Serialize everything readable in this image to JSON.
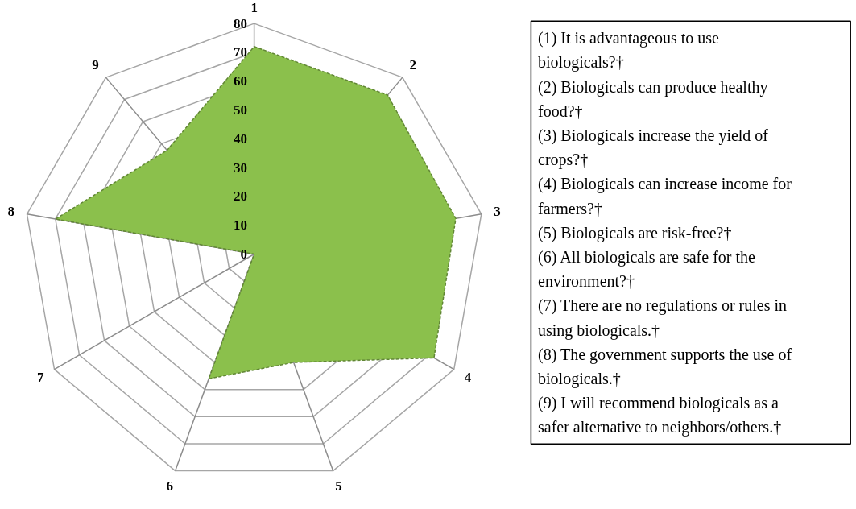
{
  "chart_data": {
    "type": "radar",
    "categories": [
      "1",
      "2",
      "3",
      "4",
      "5",
      "6",
      "7",
      "8",
      "9"
    ],
    "series": [
      {
        "color": "#8bc04c",
        "values": [
          72,
          72,
          71,
          72,
          40,
          46,
          0,
          70,
          47
        ]
      }
    ],
    "ylim": [
      0,
      80
    ],
    "yticks": [
      0,
      10,
      20,
      30,
      40,
      50,
      60,
      70,
      80
    ],
    "grid": true,
    "line_style": "dashed",
    "annotations": [
      "(1) It is advantageous to use biologicals?†",
      "(2) Biologicals can produce healthy food?†",
      "(3) Biologicals increase the yield of crops?†",
      "(4) Biologicals can increase income for farmers?†",
      "(5) Biologicals are risk-free?†",
      "(6) All biologicals are safe for the environment?†",
      "(7) There are no regulations or rules in using biologicals.†",
      "(8) The government supports the use of biologicals.†",
      "(9) I will recommend biologicals as a safer alternative to neighbors/others.†"
    ]
  }
}
